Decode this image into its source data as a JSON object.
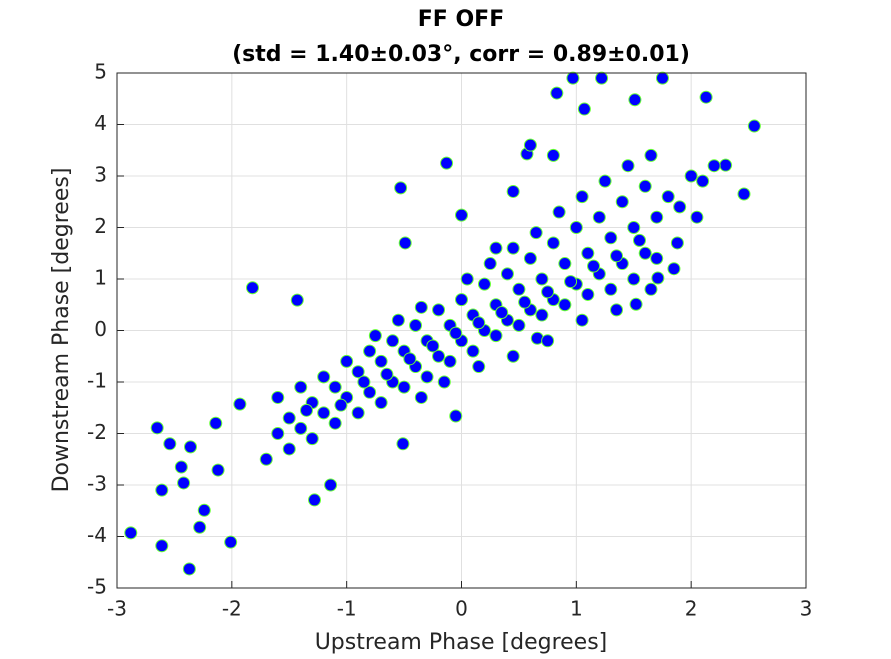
{
  "chart_data": {
    "type": "scatter",
    "title": [
      "FF OFF",
      "(std = 1.40±0.03°, corr = 0.89±0.01)"
    ],
    "xlabel": "Upstream Phase [degrees]",
    "ylabel": "Downstream Phase [degrees]",
    "xlim": [
      -3,
      3
    ],
    "ylim": [
      -5,
      5
    ],
    "xticks": [
      -3,
      -2,
      -1,
      0,
      1,
      2,
      3
    ],
    "yticks": [
      -5,
      -4,
      -3,
      -2,
      -1,
      0,
      1,
      2,
      3,
      4,
      5
    ],
    "grid": true,
    "color": "#0000ff",
    "edgecolor": "#66ff33",
    "x": [
      -2.88,
      -2.61,
      -2.37,
      -2.65,
      -2.54,
      -2.36,
      -2.44,
      -2.42,
      -2.61,
      -2.24,
      -2.28,
      -2.01,
      -1.82,
      -1.43,
      -0.13,
      -0.53,
      1.07,
      0.97,
      1.22,
      1.75,
      1.51,
      2.13,
      2.55,
      2.46,
      2.3,
      0.83,
      -1.93,
      -2.14,
      -2.12,
      -1.14,
      -1.28,
      -0.51,
      -0.05,
      1.71,
      1.88,
      1.52,
      0.66,
      -0.49,
      0.0,
      0.57,
      -1.6,
      -1.5,
      -1.4,
      -1.3,
      -1.2,
      -1.1,
      -1.0,
      -0.9,
      -0.8,
      -0.7,
      -0.6,
      -0.5,
      -0.4,
      -0.3,
      -0.2,
      -0.1,
      0.0,
      0.1,
      0.2,
      0.3,
      0.4,
      0.5,
      0.6,
      0.7,
      0.8,
      0.9,
      1.0,
      1.1,
      1.2,
      1.3,
      1.4,
      1.5,
      1.6,
      1.7,
      -1.7,
      -1.5,
      -1.3,
      -1.1,
      -0.9,
      -0.7,
      -0.5,
      -0.3,
      -0.1,
      0.1,
      0.3,
      0.5,
      0.7,
      0.9,
      1.1,
      1.3,
      1.5,
      1.7,
      -1.6,
      -1.4,
      -1.2,
      -1.0,
      -0.8,
      -0.6,
      -0.4,
      -0.2,
      0.0,
      0.2,
      0.4,
      0.6,
      0.8,
      1.0,
      1.2,
      1.4,
      1.6,
      -1.35,
      -1.05,
      -0.85,
      -0.65,
      -0.45,
      -0.25,
      -0.05,
      0.15,
      0.35,
      0.55,
      0.75,
      0.95,
      1.15,
      1.35,
      1.55,
      -0.75,
      -0.55,
      -0.35,
      0.05,
      0.25,
      0.45,
      0.65,
      0.85,
      1.05,
      1.25,
      1.45,
      1.65,
      -0.35,
      -0.15,
      0.15,
      0.45,
      0.75,
      1.05,
      1.35,
      1.65,
      1.85,
      1.9,
      2.0,
      2.1,
      2.2,
      1.8,
      2.05,
      0.6,
      0.45,
      0.8,
      0.3
    ],
    "values": [
      -3.93,
      -4.18,
      -4.63,
      -1.89,
      -2.2,
      -2.26,
      -2.65,
      -2.96,
      -3.1,
      -3.49,
      -3.82,
      -4.11,
      0.83,
      0.59,
      3.25,
      2.77,
      4.3,
      4.9,
      4.9,
      4.9,
      4.48,
      4.53,
      3.97,
      2.65,
      3.21,
      4.61,
      -1.43,
      -1.8,
      -2.71,
      -3.0,
      -3.29,
      -2.2,
      -1.66,
      1.02,
      1.7,
      0.51,
      -0.15,
      1.7,
      2.24,
      3.43,
      -2.0,
      -1.7,
      -1.9,
      -1.4,
      -1.6,
      -1.1,
      -1.3,
      -0.8,
      -1.2,
      -0.6,
      -1.0,
      -0.4,
      -0.7,
      -0.2,
      -0.5,
      0.1,
      -0.2,
      0.3,
      0.0,
      0.5,
      0.2,
      0.8,
      0.4,
      1.0,
      0.6,
      1.3,
      0.9,
      1.5,
      1.1,
      1.8,
      1.3,
      2.0,
      1.5,
      2.2,
      -2.5,
      -2.3,
      -2.1,
      -1.8,
      -1.6,
      -1.4,
      -1.1,
      -0.9,
      -0.6,
      -0.4,
      -0.1,
      0.1,
      0.3,
      0.5,
      0.7,
      0.8,
      1.0,
      1.4,
      -1.3,
      -1.1,
      -0.9,
      -0.6,
      -0.4,
      -0.2,
      0.1,
      0.4,
      0.6,
      0.9,
      1.1,
      1.4,
      1.7,
      2.0,
      2.2,
      2.5,
      2.8,
      -1.55,
      -1.45,
      -1.0,
      -0.85,
      -0.55,
      -0.3,
      -0.05,
      0.15,
      0.35,
      0.55,
      0.75,
      0.95,
      1.25,
      1.45,
      1.75,
      -0.1,
      0.2,
      0.45,
      1.0,
      1.3,
      1.6,
      1.9,
      2.3,
      2.6,
      2.9,
      3.2,
      3.4,
      -1.3,
      -1.0,
      -0.7,
      -0.5,
      -0.2,
      0.2,
      0.4,
      0.8,
      1.2,
      2.4,
      3.0,
      2.9,
      3.2,
      2.6,
      2.2,
      3.6,
      2.7,
      3.4,
      1.6
    ]
  }
}
